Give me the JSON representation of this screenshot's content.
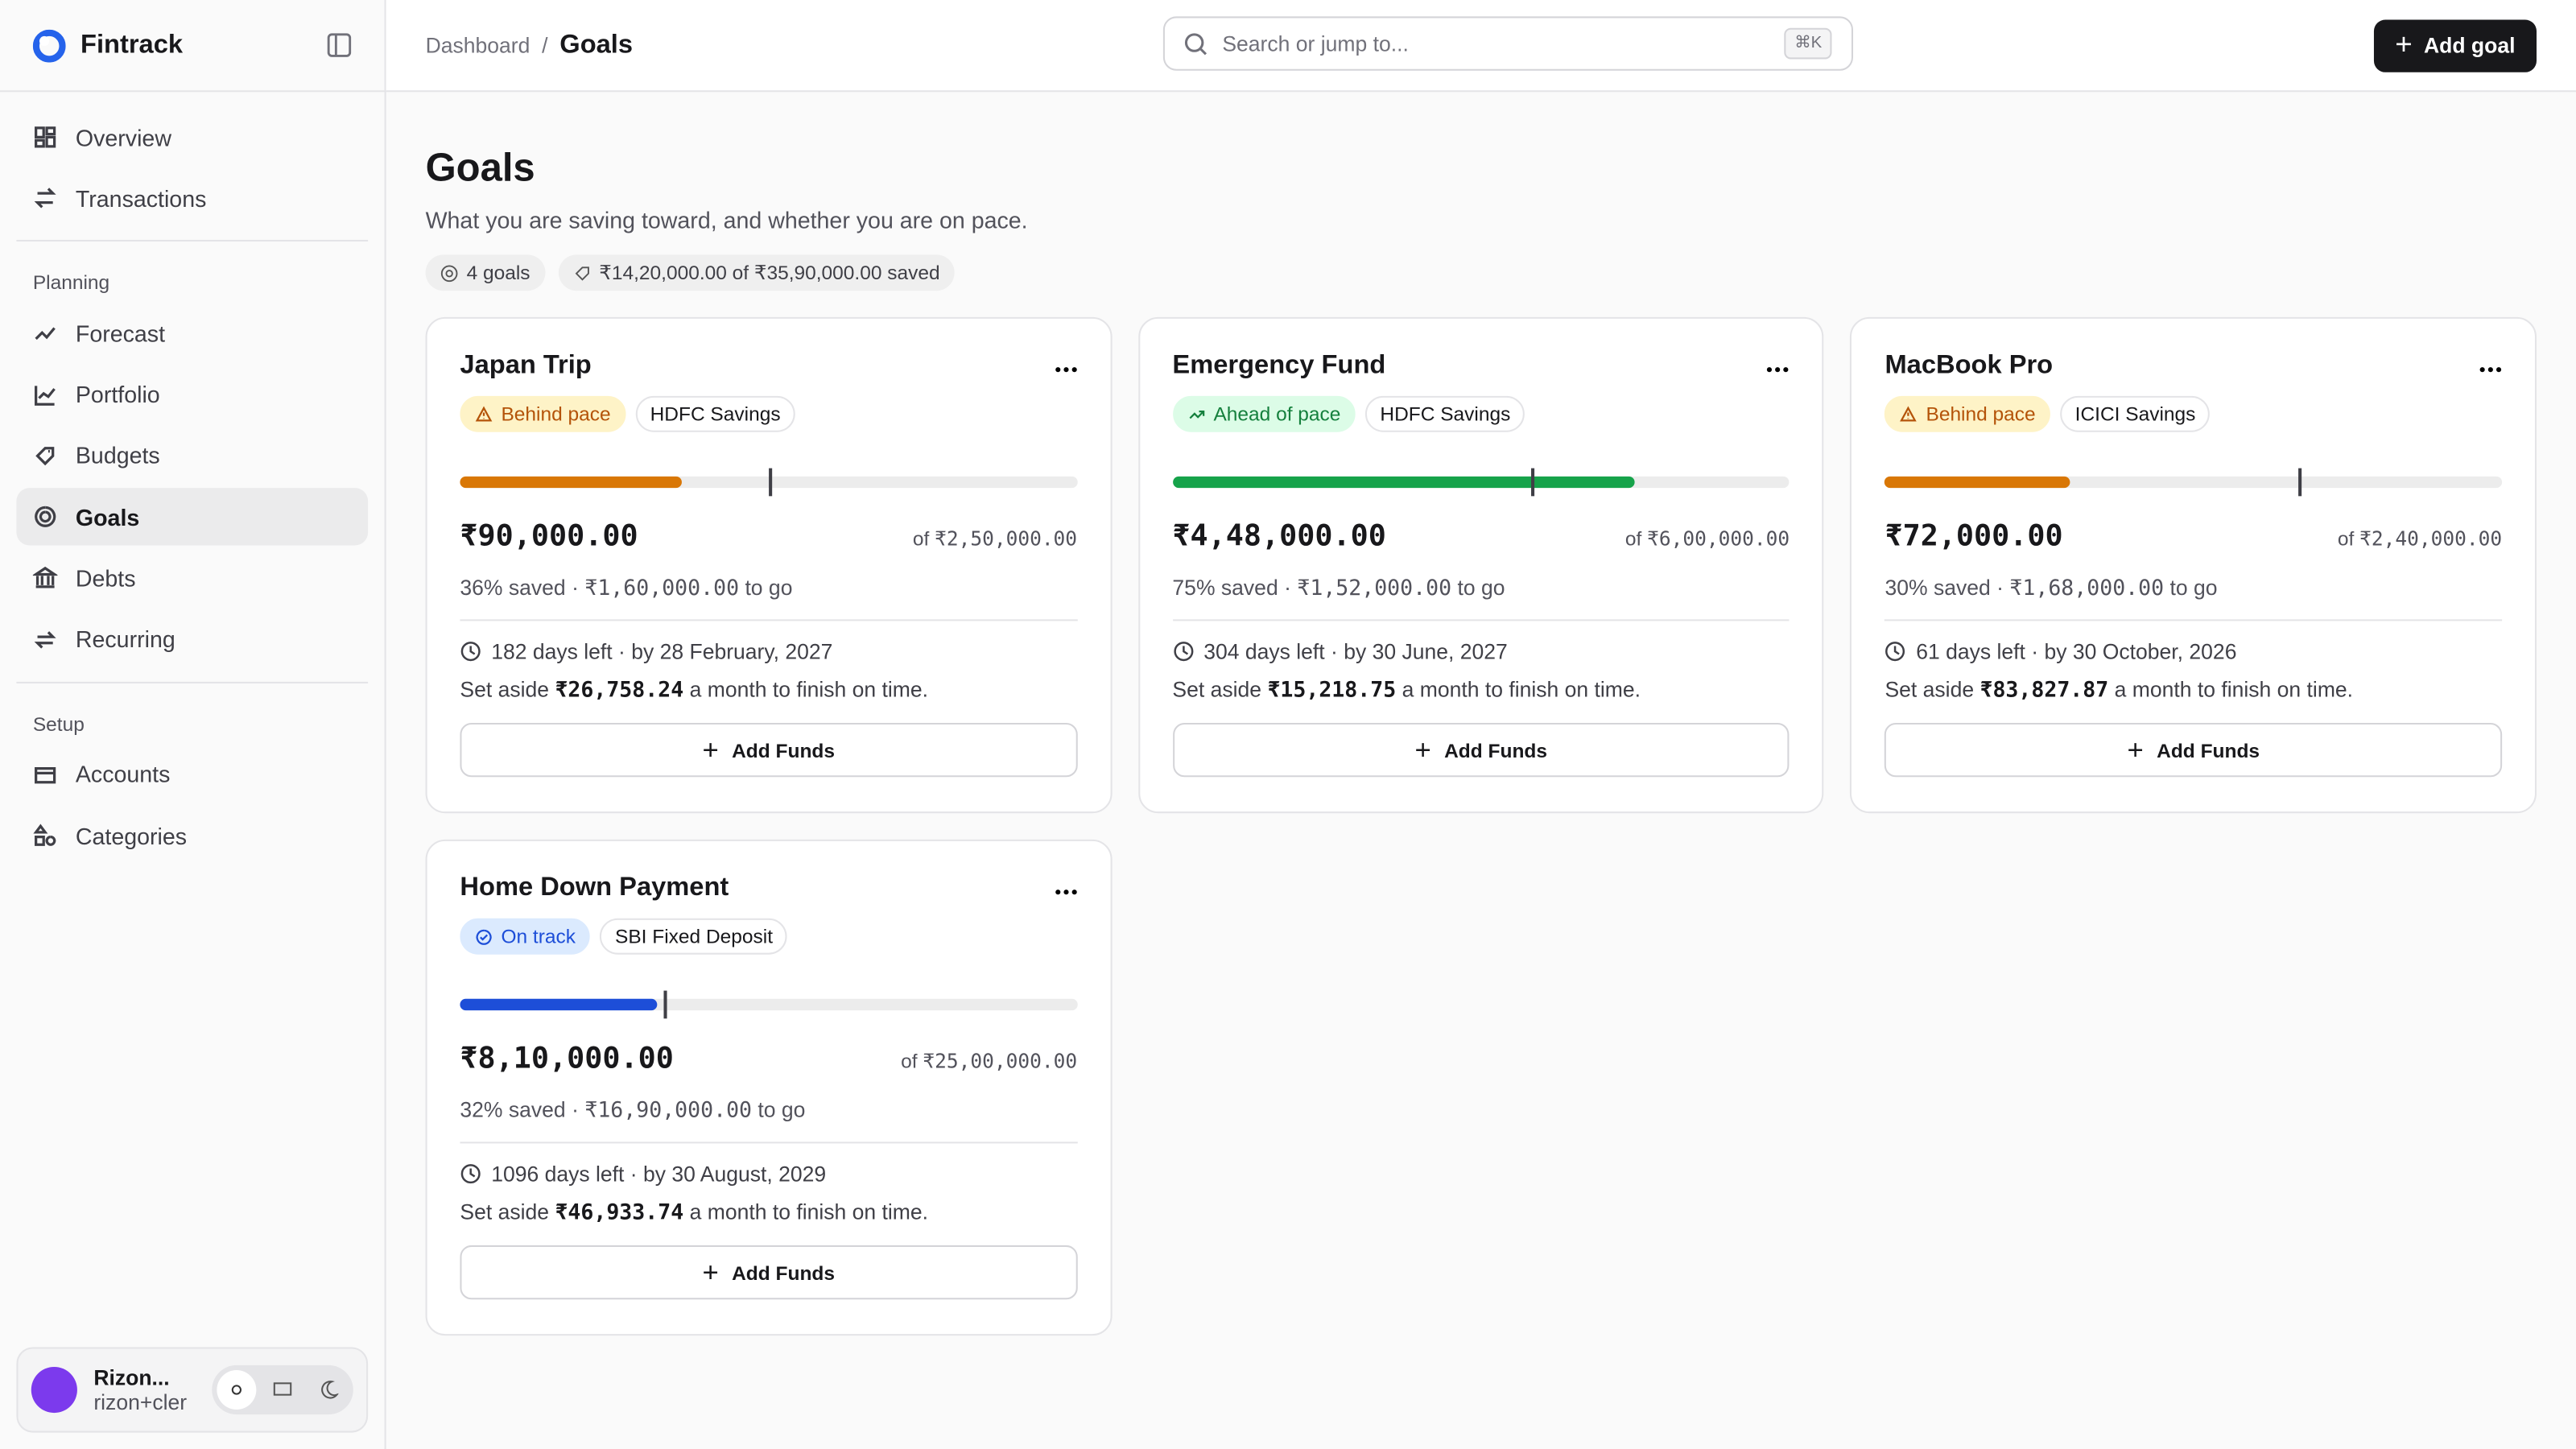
{
  "sidebar": {
    "brand": "Fintrack",
    "nav": [
      "Overview",
      "Transactions"
    ],
    "planning_label": "Planning",
    "planning": [
      "Forecast",
      "Portfolio",
      "Budgets",
      "Goals",
      "Debts",
      "Recurring"
    ],
    "setup_label": "Setup",
    "setup": [
      "Accounts",
      "Categories"
    ],
    "user": {
      "name": "Rizon...",
      "email": "rizon+cler"
    }
  },
  "header": {
    "breadcrumb": [
      "Dashboard",
      "Goals"
    ],
    "separator": "/",
    "search_placeholder": "Search or jump to...",
    "shortcut": "⌘K",
    "button": "Add goal"
  },
  "page": {
    "title": "Goals",
    "subtitle": "What you are saving toward, and whether you are on pace.",
    "chips": [
      "4 goals",
      "₹14,20,000.00 of ₹35,90,000.00 saved"
    ]
  },
  "goals": [
    {
      "name": "Japan Trip",
      "status": "Behind pace",
      "status_tone": "warning",
      "account": "HDFC Savings",
      "progress": {
        "value": 36,
        "label": "36% saved"
      },
      "pace": 50,
      "saved": "₹90,000.00",
      "target_prefix": "of",
      "target": "₹2,50,000.00",
      "separator": "·",
      "remaining": "₹1,60,000.00",
      "remaining_suffix": "to go",
      "deadline": "182 days left · by 28 February, 2027",
      "set_aside_prefix": "Set aside",
      "monthly": "₹26,758.24",
      "set_aside_suffix": "a month to finish on time.",
      "action": "Add Funds"
    },
    {
      "name": "Emergency Fund",
      "status": "Ahead of pace",
      "status_tone": "success",
      "account": "HDFC Savings",
      "progress": {
        "value": 75,
        "label": "75% saved"
      },
      "pace": 58,
      "saved": "₹4,48,000.00",
      "target_prefix": "of",
      "target": "₹6,00,000.00",
      "separator": "·",
      "remaining": "₹1,52,000.00",
      "remaining_suffix": "to go",
      "deadline": "304 days left · by 30 June, 2027",
      "set_aside_prefix": "Set aside",
      "monthly": "₹15,218.75",
      "set_aside_suffix": "a month to finish on time.",
      "action": "Add Funds"
    },
    {
      "name": "MacBook Pro",
      "status": "Behind pace",
      "status_tone": "warning",
      "account": "ICICI Savings",
      "progress": {
        "value": 30,
        "label": "30% saved"
      },
      "pace": 67,
      "saved": "₹72,000.00",
      "target_prefix": "of",
      "target": "₹2,40,000.00",
      "separator": "·",
      "remaining": "₹1,68,000.00",
      "remaining_suffix": "to go",
      "deadline": "61 days left · by 30 October, 2026",
      "set_aside_prefix": "Set aside",
      "monthly": "₹83,827.87",
      "set_aside_suffix": "a month to finish on time.",
      "action": "Add Funds"
    },
    {
      "name": "Home Down Payment",
      "status": "On track",
      "status_tone": "info",
      "account": "SBI Fixed Deposit",
      "progress": {
        "value": 32,
        "label": "32% saved"
      },
      "pace": 33,
      "saved": "₹8,10,000.00",
      "target_prefix": "of",
      "target": "₹25,00,000.00",
      "separator": "·",
      "remaining": "₹16,90,000.00",
      "remaining_suffix": "to go",
      "deadline": "1096 days left · by 30 August, 2029",
      "set_aside_prefix": "Set aside",
      "monthly": "₹46,933.74",
      "set_aside_suffix": "a month to finish on time.",
      "action": "Add Funds"
    }
  ]
}
